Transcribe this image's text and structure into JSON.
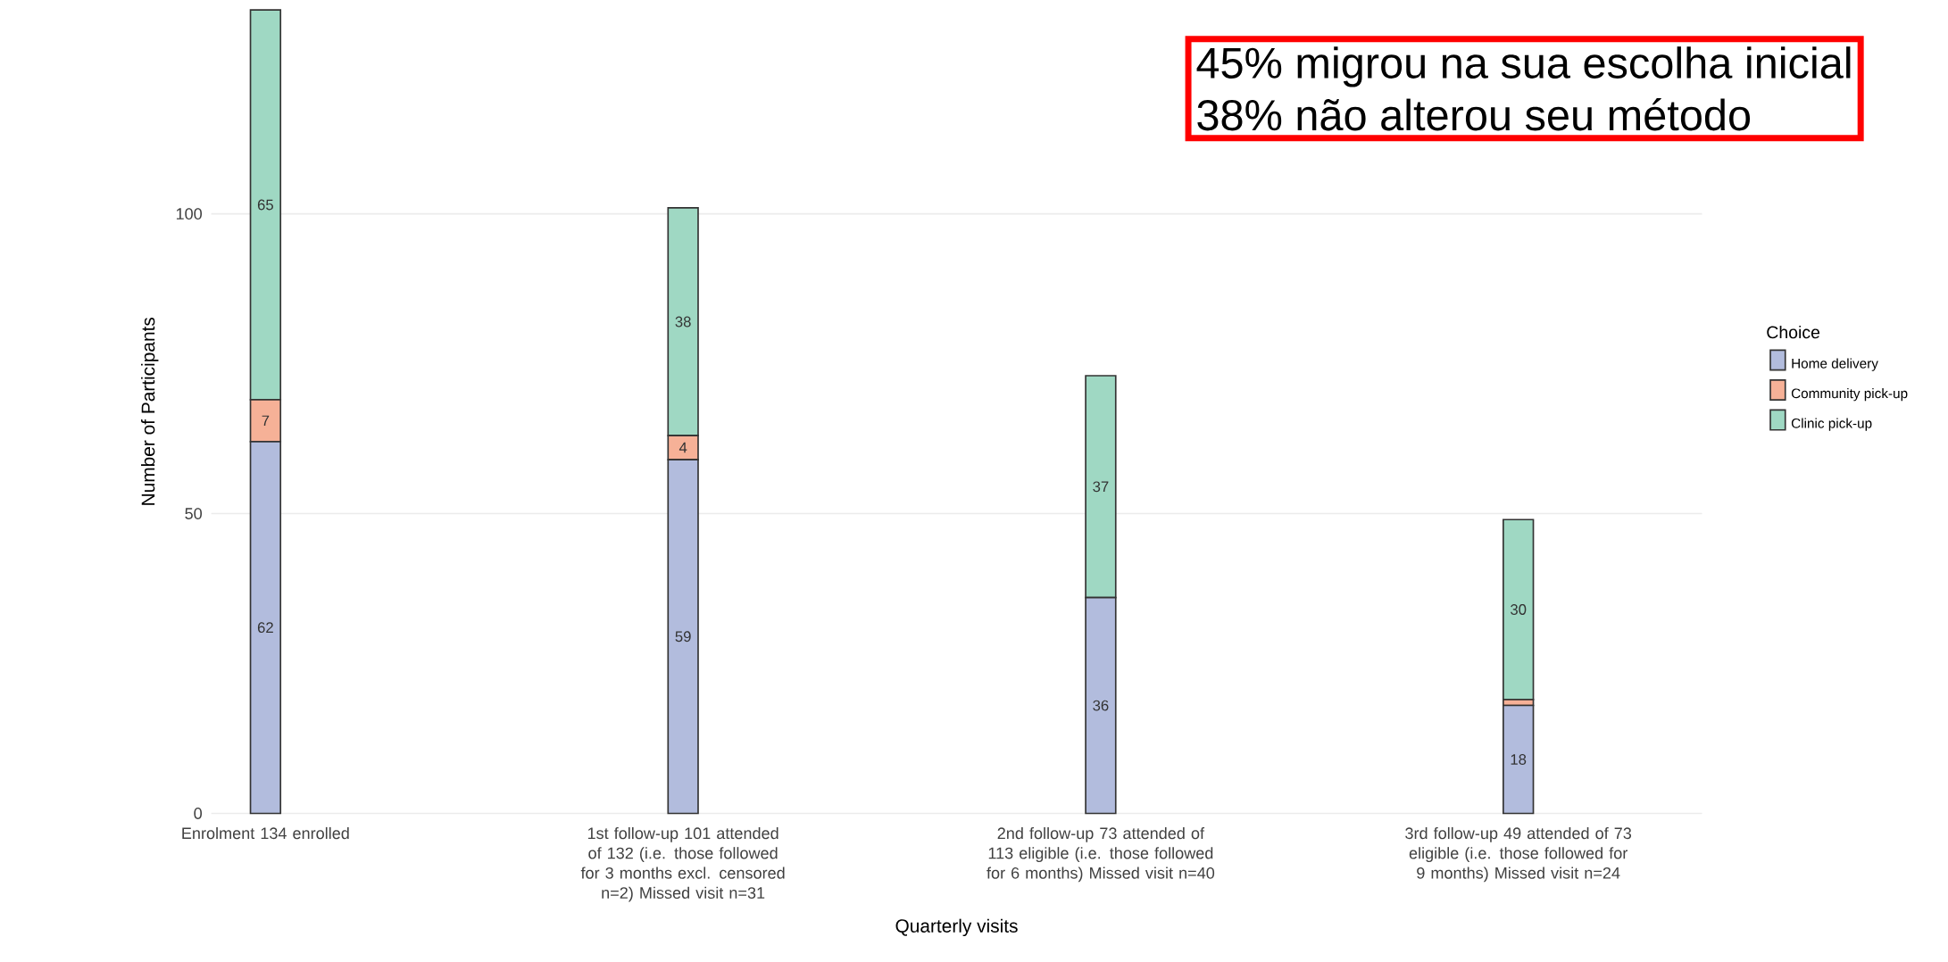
{
  "chart_data": {
    "type": "bar",
    "stacked": true,
    "categories": [
      "Enrolment 134 enrolled",
      "1st follow-up 101 attended of 132 (i.e. those followed for 3 months excl. censored n=2) Missed visit n=31",
      "2nd follow-up 73 attended of 113 eligible (i.e. those followed for 6 months) Missed visit n=40",
      "3rd follow-up 49 attended of 73 eligible (i.e. those followed for 9 months) Missed visit n=24"
    ],
    "series": [
      {
        "name": "Home delivery",
        "color": "#b2bcdd",
        "values": [
          62,
          59,
          36,
          18
        ],
        "value_labels": [
          "62",
          "59",
          "36",
          "18"
        ]
      },
      {
        "name": "Community pick-up",
        "color": "#f6b197",
        "values": [
          7,
          4,
          0,
          1
        ],
        "value_labels": [
          "7",
          "4",
          null,
          null
        ]
      },
      {
        "name": "Clinic pick-up",
        "color": "#9fd8c3",
        "values": [
          65,
          38,
          37,
          30
        ],
        "value_labels": [
          "65",
          "38",
          "37",
          "30"
        ]
      }
    ],
    "ylim": [
      0,
      134
    ],
    "yticks": [
      0,
      50,
      100
    ],
    "grid": "y",
    "xlabel": "Quarterly visits",
    "ylabel": "Number of Participants",
    "legend": "right",
    "legend_title": "Choice",
    "annotations": [
      "45% migrou na sua escolha inicial",
      "38% não alterou seu método"
    ]
  }
}
